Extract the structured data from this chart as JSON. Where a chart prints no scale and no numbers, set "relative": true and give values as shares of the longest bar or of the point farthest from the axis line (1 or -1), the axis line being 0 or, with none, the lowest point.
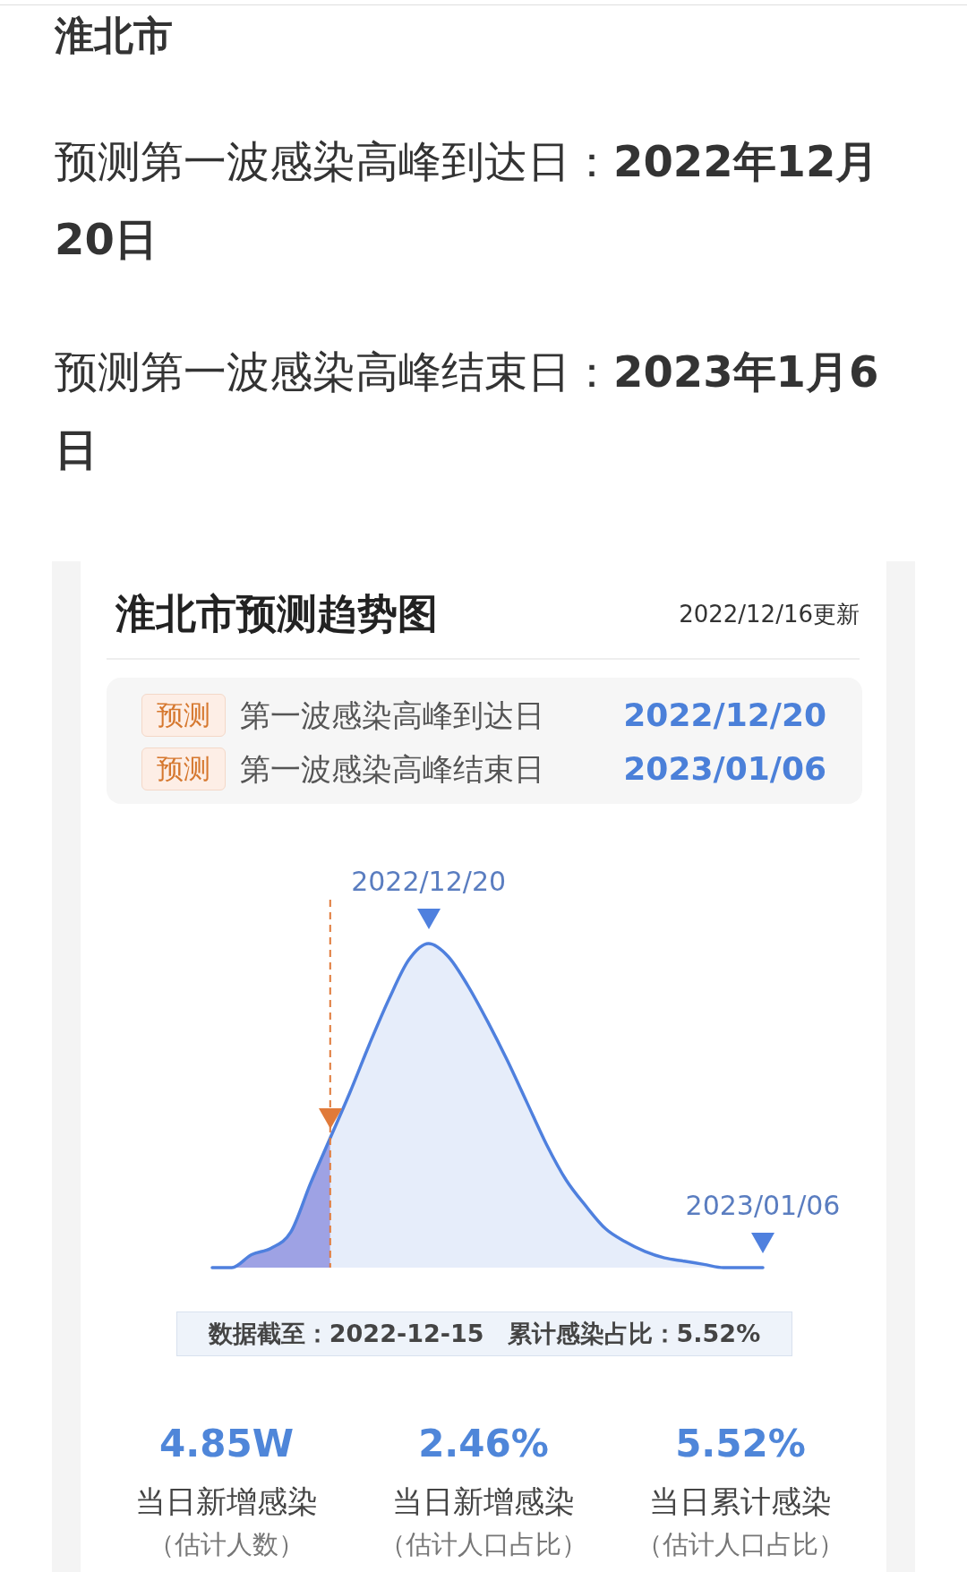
{
  "chart_data": {
    "type": "area",
    "title": "淮北市预测趋势图",
    "subtitle": "2022/12/16更新",
    "relative": true,
    "tick_labels": false,
    "categories": [
      null,
      null,
      null,
      null,
      null,
      null,
      null,
      null,
      null,
      null,
      null,
      null,
      null,
      null,
      null,
      null,
      null,
      null,
      null,
      null,
      null,
      null,
      null,
      null,
      null,
      null,
      null,
      null,
      null
    ],
    "series": [
      {
        "color": "#4f80de",
        "values": [
          0,
          0,
          0.04,
          0.06,
          0.11,
          0.26,
          0.4,
          0.54,
          0.69,
          0.83,
          0.95,
          1,
          0.96,
          0.87,
          0.76,
          0.64,
          0.51,
          0.38,
          0.27,
          0.19,
          0.12,
          0.08,
          0.05,
          0.03,
          0.02,
          0.01,
          0,
          0,
          0
        ]
      },
      {
        "color": "#aca8e6",
        "values": [
          0,
          0,
          0.04,
          0.06,
          0.11,
          0.26,
          0.4,
          null,
          null,
          null,
          null,
          null,
          null,
          null,
          null,
          null,
          null,
          null,
          null,
          null,
          null,
          null,
          null,
          null,
          null,
          null,
          null,
          null,
          null
        ]
      }
    ],
    "annotations": [
      "淮北市",
      "预测第一波感染高峰到达日：",
      "2022年12月20日",
      "预测第一波感染高峰结束日：",
      "2023年1月6日",
      "预测",
      "第一波感染高峰到达日",
      "2022/12/20",
      "预测",
      "第一波感染高峰结束日",
      "2023/01/06",
      {
        "text": "2022/12/20",
        "y": 1
      },
      {
        "text": "2023/01/06",
        "y": 0
      },
      "数据截至：2022-12-15",
      "累计感染占比：5.52%",
      "4.85W",
      "当日新增感染",
      "（估计人数）",
      "2.46%",
      "当日新增感染",
      "（估计人口占比）",
      "5.52%",
      "当日累计感染",
      "（估计人口占比）"
    ]
  }
}
